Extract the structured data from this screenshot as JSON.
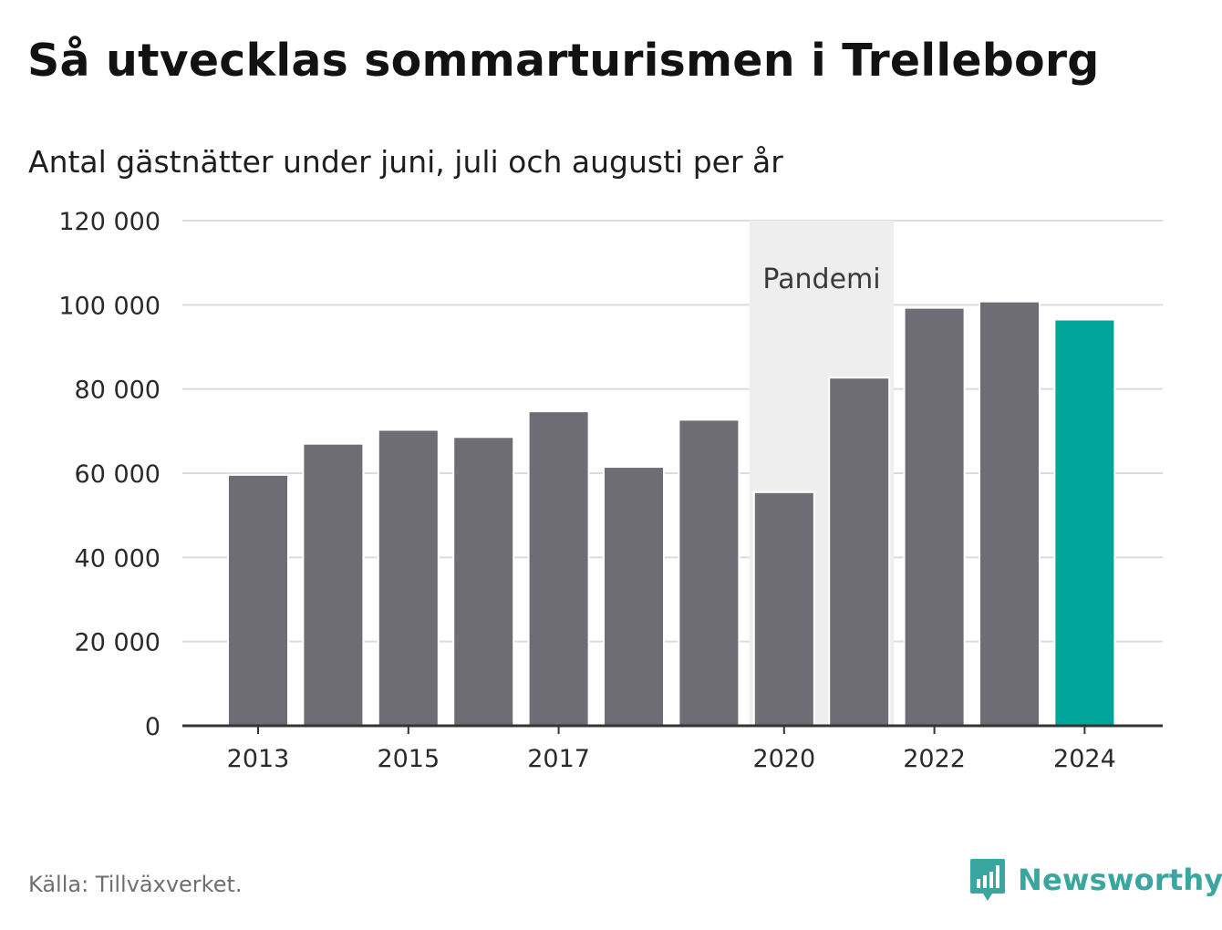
{
  "title": "Så utvecklas sommarturismen i Trelleborg",
  "subtitle": "Antal gästnätter under juni, juli och augusti per år",
  "source": "Källa: Tillväxverket.",
  "brand": "Newsworthy",
  "colors": {
    "bar": "#6e6c74",
    "highlight": "#00a699",
    "band": "#eeeeee",
    "grid": "#dcdcdc",
    "axis": "#333333",
    "brand": "#3aa6a0"
  },
  "chart_data": {
    "type": "bar",
    "title": "Så utvecklas sommarturismen i Trelleborg",
    "subtitle": "Antal gästnätter under juni, juli och augusti per år",
    "categories": [
      2013,
      2014,
      2015,
      2016,
      2017,
      2018,
      2019,
      2020,
      2021,
      2022,
      2023,
      2024
    ],
    "values": [
      59600,
      67000,
      70300,
      68600,
      74700,
      61500,
      72700,
      55500,
      82700,
      99300,
      100800,
      96500
    ],
    "highlight_category": 2024,
    "x_tick_labels": [
      "2013",
      "2015",
      "2017",
      "2020",
      "2022",
      "2024"
    ],
    "y_ticks": [
      0,
      20000,
      40000,
      60000,
      80000,
      100000,
      120000
    ],
    "y_tick_labels": [
      "0",
      "20 000",
      "40 000",
      "60 000",
      "80 000",
      "100 000",
      "120 000"
    ],
    "ylim": [
      0,
      120000
    ],
    "grid": true,
    "legend": "none",
    "annotation": {
      "label": "Pandemi",
      "from": 2020,
      "to": 2021
    }
  }
}
